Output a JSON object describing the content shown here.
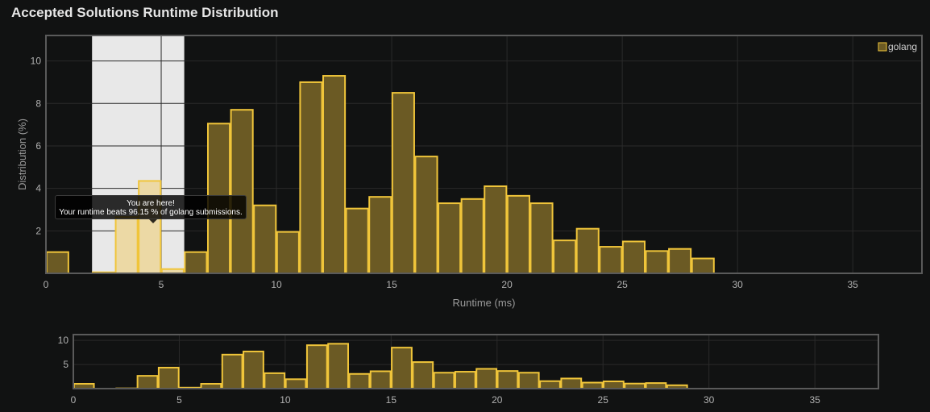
{
  "title": "Accepted Solutions Runtime Distribution",
  "colors": {
    "background": "#111212",
    "bar_fill": "#6b5a24",
    "bar_stroke": "#f0c53a",
    "highlight_fill": "#ecd9a5",
    "highlight_band": "#e8e8e8",
    "grid": "#2a2a2a",
    "frame": "#5a5a5a"
  },
  "tooltip": {
    "line1": "You are here!",
    "line2": "Your runtime beats 96.15 % of golang submissions."
  },
  "chart_data": [
    {
      "type": "bar",
      "title": "",
      "xlabel": "Runtime (ms)",
      "ylabel": "Distribution (%)",
      "xlim": [
        0,
        38
      ],
      "ylim": [
        0,
        11.2
      ],
      "xticks": [
        0,
        5,
        10,
        15,
        20,
        25,
        30,
        35
      ],
      "yticks": [
        2,
        4,
        6,
        8,
        10
      ],
      "grid": true,
      "legend": "top-right",
      "series": [
        {
          "name": "golang",
          "bin_width": 1,
          "x": [
            0,
            1,
            2,
            3,
            4,
            5,
            6,
            7,
            8,
            9,
            10,
            11,
            12,
            13,
            14,
            15,
            16,
            17,
            18,
            19,
            20,
            21,
            22,
            23,
            24,
            25,
            26,
            27,
            28
          ],
          "values": [
            1.0,
            0,
            0.05,
            2.65,
            4.35,
            0.2,
            1.0,
            7.05,
            7.7,
            3.2,
            1.95,
            9.0,
            9.3,
            3.05,
            3.6,
            8.5,
            5.5,
            3.3,
            3.5,
            4.1,
            3.65,
            3.3,
            1.55,
            2.1,
            1.25,
            1.5,
            1.05,
            1.15,
            0.7
          ]
        }
      ],
      "highlight_range": [
        2,
        6
      ]
    },
    {
      "type": "bar",
      "title": "",
      "xlabel": "",
      "ylabel": "",
      "xlim": [
        0,
        38
      ],
      "ylim": [
        0,
        11.2
      ],
      "xticks": [
        0,
        5,
        10,
        15,
        20,
        25,
        30,
        35
      ],
      "yticks": [
        5,
        10
      ],
      "grid": true,
      "series": [
        {
          "name": "",
          "bin_width": 1,
          "x": [
            0,
            1,
            2,
            3,
            4,
            5,
            6,
            7,
            8,
            9,
            10,
            11,
            12,
            13,
            14,
            15,
            16,
            17,
            18,
            19,
            20,
            21,
            22,
            23,
            24,
            25,
            26,
            27,
            28
          ],
          "values": [
            1.0,
            0,
            0.05,
            2.65,
            4.35,
            0.2,
            1.0,
            7.05,
            7.7,
            3.2,
            1.95,
            9.0,
            9.3,
            3.05,
            3.6,
            8.5,
            5.5,
            3.3,
            3.5,
            4.1,
            3.65,
            3.3,
            1.55,
            2.1,
            1.25,
            1.5,
            1.05,
            1.15,
            0.7
          ]
        }
      ]
    }
  ]
}
